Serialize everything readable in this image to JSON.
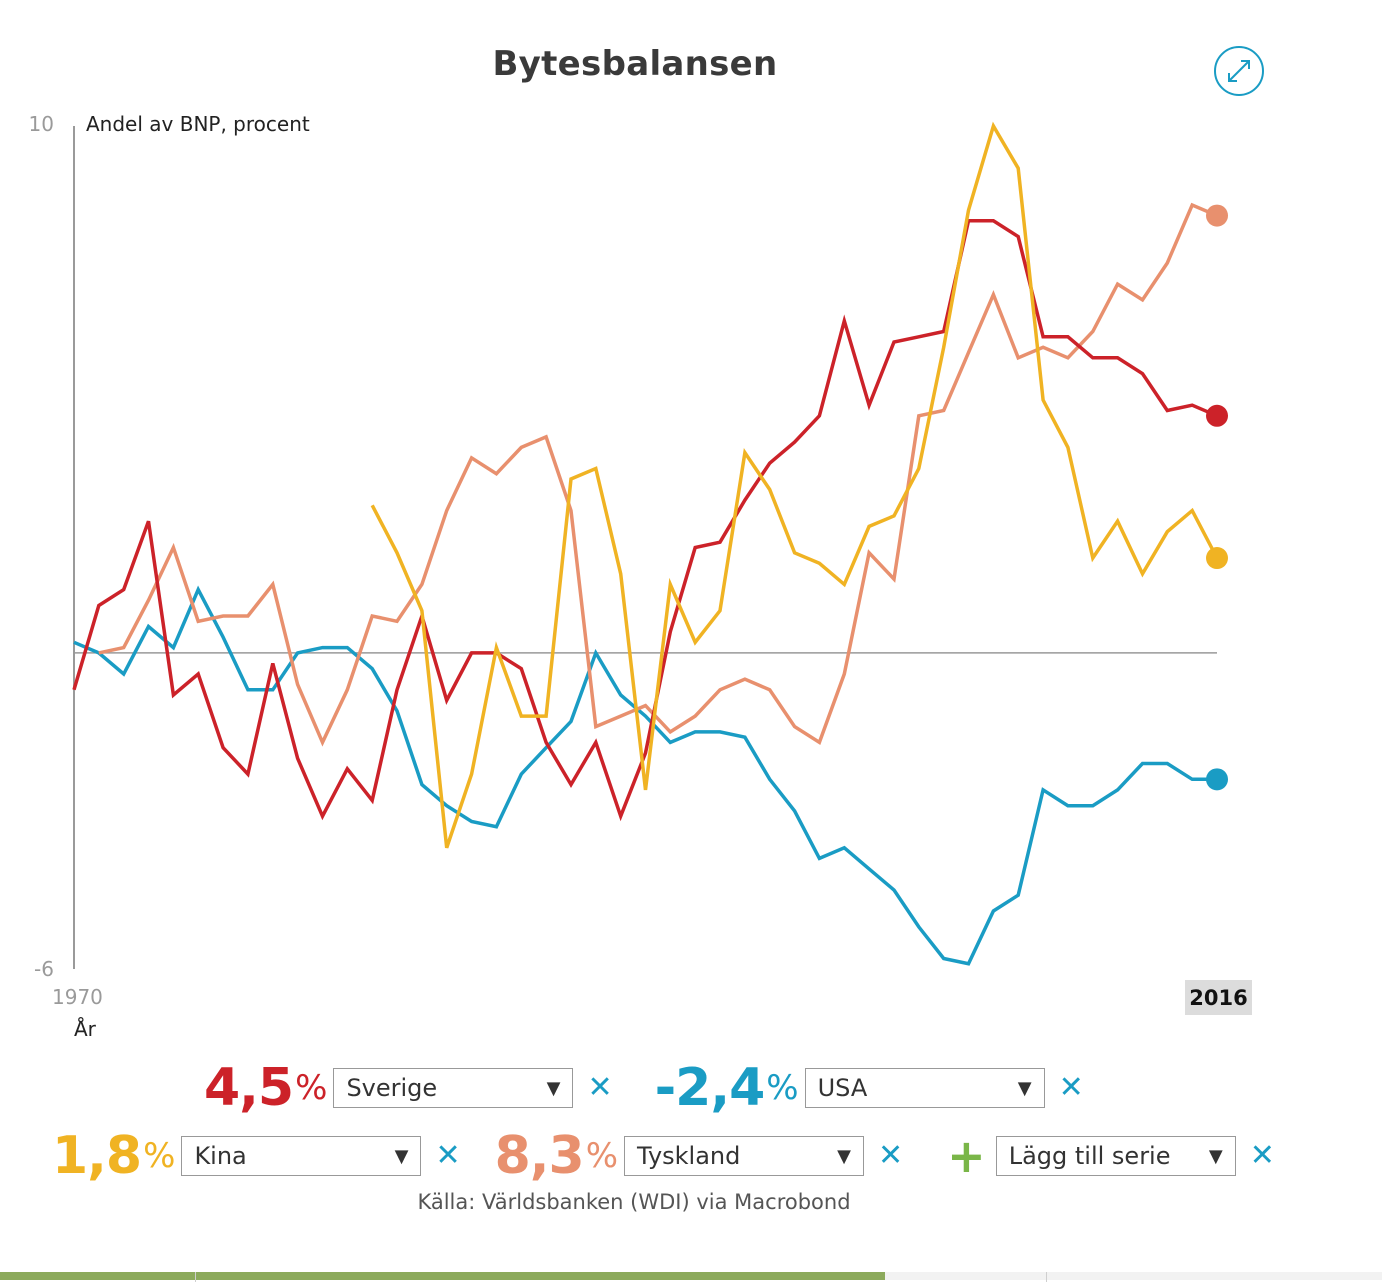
{
  "header": {
    "title": "Bytesbalansen"
  },
  "colors": {
    "Sverige": "#cc2229",
    "USA": "#1a9cc4",
    "Kina": "#f0b323",
    "Tyskland": "#e8906e",
    "add": "#7ab648",
    "remove": "#1a9cc4"
  },
  "legend": {
    "sverige": {
      "value": "4,5",
      "unit": "%",
      "country": "Sverige"
    },
    "usa": {
      "value": "-2,4",
      "unit": "%",
      "country": "USA"
    },
    "kina": {
      "value": "1,8",
      "unit": "%",
      "country": "Kina"
    },
    "tyskland": {
      "value": "8,3",
      "unit": "%",
      "country": "Tyskland"
    },
    "add_series": "Lägg till serie"
  },
  "source": "Källa: Världsbanken (WDI) via Macrobond",
  "chart_data": {
    "type": "line",
    "title": "Bytesbalansen",
    "ylabel": "Andel av BNP, procent",
    "xlabel": "År",
    "ylim": [
      -6,
      10
    ],
    "xlim": [
      1970,
      2016
    ],
    "y_tick_labels": [
      "10",
      "-6"
    ],
    "x_tick_labels": [
      "1970",
      "2016"
    ],
    "zero_line": true,
    "grid": false,
    "series": [
      {
        "name": "Sverige",
        "color": "#cc2229",
        "start_year": 1970,
        "values": [
          -0.7,
          0.9,
          1.2,
          2.5,
          -0.8,
          -0.4,
          -1.8,
          -2.3,
          -0.2,
          -2.0,
          -3.1,
          -2.2,
          -2.8,
          -0.7,
          0.7,
          -0.9,
          0.0,
          0.0,
          -0.3,
          -1.7,
          -2.5,
          -1.7,
          -3.1,
          -1.9,
          0.4,
          2.0,
          2.1,
          2.9,
          3.6,
          4.0,
          4.5,
          6.3,
          4.7,
          5.9,
          6.0,
          6.1,
          8.2,
          8.2,
          7.9,
          6.0,
          6.0,
          5.6,
          5.6,
          5.3,
          4.6,
          4.7,
          4.5
        ]
      },
      {
        "name": "USA",
        "color": "#1a9cc4",
        "start_year": 1970,
        "values": [
          0.2,
          0.0,
          -0.4,
          0.5,
          0.1,
          1.2,
          0.3,
          -0.7,
          -0.7,
          0.0,
          0.1,
          0.1,
          -0.3,
          -1.1,
          -2.5,
          -2.9,
          -3.2,
          -3.3,
          -2.3,
          -1.8,
          -1.3,
          0.0,
          -0.8,
          -1.2,
          -1.7,
          -1.5,
          -1.5,
          -1.6,
          -2.4,
          -3.0,
          -3.9,
          -3.7,
          -4.1,
          -4.5,
          -5.2,
          -5.8,
          -5.9,
          -4.9,
          -4.6,
          -2.6,
          -2.9,
          -2.9,
          -2.6,
          -2.1,
          -2.1,
          -2.4,
          -2.4
        ]
      },
      {
        "name": "Kina",
        "color": "#f0b323",
        "start_year": 1982,
        "values": [
          2.8,
          1.9,
          0.8,
          -3.7,
          -2.3,
          0.1,
          -1.2,
          -1.2,
          3.3,
          3.5,
          1.5,
          -2.6,
          1.3,
          0.2,
          0.8,
          3.8,
          3.1,
          1.9,
          1.7,
          1.3,
          2.4,
          2.6,
          3.5,
          5.8,
          8.4,
          10.0,
          9.2,
          4.8,
          3.9,
          1.8,
          2.5,
          1.5,
          2.3,
          2.7,
          1.8
        ]
      },
      {
        "name": "Tyskland",
        "color": "#e8906e",
        "start_year": 1971,
        "values": [
          0.0,
          0.1,
          1.0,
          2.0,
          0.6,
          0.7,
          0.7,
          1.3,
          -0.6,
          -1.7,
          -0.7,
          0.7,
          0.6,
          1.3,
          2.7,
          3.7,
          3.4,
          3.9,
          4.1,
          2.7,
          -1.4,
          -1.2,
          -1.0,
          -1.5,
          -1.2,
          -0.7,
          -0.5,
          -0.7,
          -1.4,
          -1.7,
          -0.4,
          1.9,
          1.4,
          4.5,
          4.6,
          5.7,
          6.8,
          5.6,
          5.8,
          5.6,
          6.1,
          7.0,
          6.7,
          7.4,
          8.5,
          8.3
        ]
      }
    ]
  }
}
